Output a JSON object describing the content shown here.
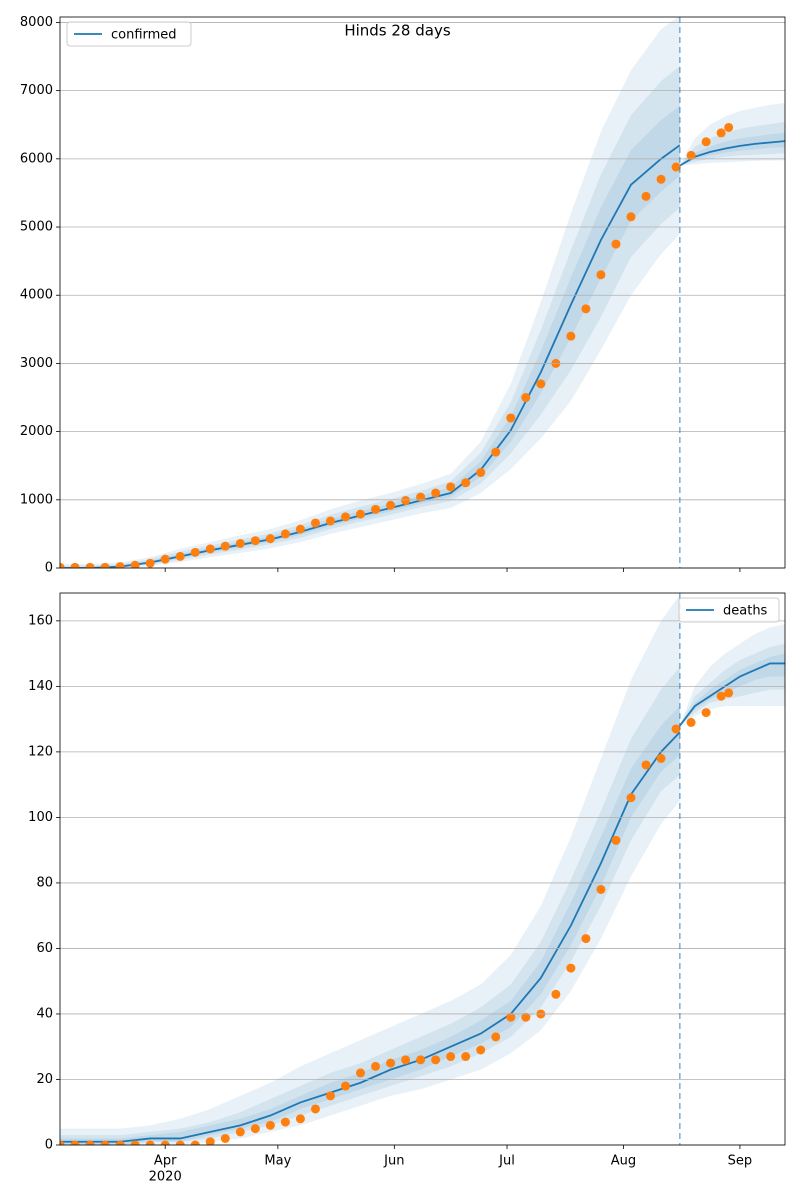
{
  "chart_data": [
    {
      "type": "line",
      "title": "Hinds 28 days",
      "legend": "upper left",
      "grid": true,
      "xlim": [
        64,
        257
      ],
      "xticks": [
        92,
        122,
        153,
        183,
        214,
        245
      ],
      "ylim": [
        0,
        8080
      ],
      "yticks": [
        0,
        1000,
        2000,
        3000,
        4000,
        5000,
        6000,
        7000,
        8000
      ],
      "vline": 229,
      "band_color": "#1f77b4",
      "series": [
        {
          "name": "confirmed",
          "color": "#1f77b4",
          "x": [
            64,
            72,
            80,
            88,
            96,
            104,
            112,
            120,
            128,
            136,
            144,
            152,
            160,
            168,
            176,
            184,
            192,
            200,
            208,
            216,
            224,
            229
          ],
          "values": [
            0,
            0,
            20,
            80,
            170,
            260,
            340,
            420,
            530,
            660,
            770,
            880,
            990,
            1100,
            1440,
            2020,
            2870,
            3860,
            4810,
            5620,
            6000,
            6200
          ],
          "bands": [
            {
              "lower": [
                0,
                0,
                0,
                30,
                90,
                160,
                220,
                290,
                380,
                500,
                600,
                700,
                800,
                880,
                1100,
                1450,
                1900,
                2450,
                3200,
                4000,
                4600,
                4900
              ],
              "upper": [
                60,
                60,
                80,
                160,
                280,
                380,
                480,
                570,
                700,
                860,
                990,
                1100,
                1230,
                1380,
                1850,
                2700,
                3900,
                5200,
                6400,
                7300,
                7900,
                8100
              ]
            },
            {
              "lower": [
                0,
                0,
                5,
                50,
                120,
                200,
                270,
                350,
                440,
                570,
                680,
                780,
                890,
                980,
                1240,
                1680,
                2250,
                2900,
                3680,
                4560,
                5040,
                5290
              ],
              "upper": [
                35,
                35,
                55,
                130,
                240,
                330,
                420,
                510,
                630,
                780,
                900,
                1010,
                1130,
                1270,
                1690,
                2430,
                3490,
                4660,
                5770,
                6640,
                7140,
                7360
              ]
            },
            {
              "lower": [
                0,
                0,
                12,
                65,
                145,
                230,
                305,
                385,
                485,
                615,
                725,
                830,
                940,
                1040,
                1340,
                1850,
                2560,
                3380,
                4250,
                5090,
                5520,
                5750
              ],
              "upper": [
                15,
                15,
                38,
                105,
                205,
                295,
                380,
                465,
                580,
                720,
                835,
                945,
                1060,
                1185,
                1565,
                2225,
                3180,
                4260,
                5290,
                6130,
                6570,
                6780
              ]
            }
          ]
        },
        {
          "color": "#1f77b4",
          "x": [
            229,
            233,
            237,
            241,
            245,
            249,
            253,
            257
          ],
          "values": [
            5900,
            6030,
            6100,
            6150,
            6190,
            6220,
            6240,
            6260
          ],
          "bands": [
            {
              "lower": [
                5900,
                5920,
                5940,
                5950,
                5960,
                5970,
                5975,
                5980
              ],
              "upper": [
                5900,
                6300,
                6500,
                6620,
                6700,
                6750,
                6790,
                6820
              ]
            },
            {
              "lower": [
                5900,
                5960,
                6000,
                6030,
                6050,
                6060,
                6070,
                6080
              ],
              "upper": [
                5900,
                6180,
                6300,
                6380,
                6440,
                6480,
                6510,
                6540
              ]
            },
            {
              "lower": [
                5900,
                6000,
                6050,
                6090,
                6120,
                6140,
                6160,
                6170
              ],
              "upper": [
                5900,
                6090,
                6180,
                6250,
                6300,
                6330,
                6360,
                6380
              ]
            }
          ]
        },
        {
          "style": "scatter",
          "color": "#ff7f0e",
          "x": [
            64,
            68,
            72,
            76,
            80,
            84,
            88,
            92,
            96,
            100,
            104,
            108,
            112,
            116,
            120,
            124,
            128,
            132,
            136,
            140,
            144,
            148,
            152,
            156,
            160,
            164,
            168,
            172,
            176,
            180,
            184,
            188,
            192,
            196,
            200,
            204,
            208,
            212,
            216,
            220,
            224,
            228,
            232,
            236,
            240,
            242
          ],
          "values": [
            10,
            10,
            10,
            10,
            20,
            40,
            70,
            130,
            170,
            230,
            280,
            320,
            360,
            400,
            430,
            500,
            570,
            660,
            690,
            750,
            790,
            860,
            920,
            990,
            1040,
            1100,
            1190,
            1250,
            1400,
            1700,
            2200,
            2500,
            2700,
            3000,
            3400,
            3800,
            4300,
            4750,
            5150,
            5450,
            5700,
            5880,
            6050,
            6250,
            6380,
            6460
          ]
        }
      ]
    },
    {
      "type": "line",
      "legend": "upper right",
      "grid": true,
      "xlim": [
        64,
        257
      ],
      "xticks": [
        {
          "value": 92,
          "label": "Apr"
        },
        {
          "value": 122,
          "label": "May"
        },
        {
          "value": 153,
          "label": "Jun"
        },
        {
          "value": 183,
          "label": "Jul"
        },
        {
          "value": 214,
          "label": "Aug"
        },
        {
          "value": 245,
          "label": "Sep"
        }
      ],
      "year": "2020",
      "ylim": [
        0,
        168.5
      ],
      "yticks": [
        0,
        20,
        40,
        60,
        80,
        100,
        120,
        140,
        160
      ],
      "vline": 229,
      "band_color": "#1f77b4",
      "series": [
        {
          "name": "deaths",
          "color": "#1f77b4",
          "x": [
            64,
            72,
            80,
            88,
            96,
            104,
            112,
            120,
            128,
            136,
            144,
            152,
            160,
            168,
            176,
            184,
            192,
            200,
            208,
            216,
            224,
            229
          ],
          "values": [
            1,
            1,
            1,
            2,
            2,
            4,
            6,
            9,
            13,
            16,
            19,
            23,
            26,
            30,
            34,
            40,
            51,
            67,
            86,
            107,
            120,
            126
          ],
          "bands": [
            {
              "lower": [
                0,
                0,
                0,
                0,
                0,
                1,
                2,
                4,
                6,
                9,
                12,
                15,
                17,
                20,
                23,
                28,
                35,
                47,
                63,
                82,
                98,
                105
              ],
              "upper": [
                5,
                5,
                5,
                6,
                8,
                11,
                15,
                19,
                24,
                28,
                32,
                36,
                40,
                44,
                49,
                58,
                73,
                94,
                118,
                142,
                160,
                168
              ]
            },
            {
              "lower": [
                0,
                0,
                0,
                1,
                1,
                2,
                4,
                6,
                9,
                12,
                15,
                18,
                21,
                24,
                28,
                33,
                42,
                56,
                73,
                93,
                108,
                113
              ],
              "upper": [
                3,
                3,
                3,
                4,
                5,
                7,
                10,
                14,
                18,
                22,
                25,
                29,
                33,
                37,
                42,
                49,
                62,
                81,
                102,
                124,
                139,
                146
              ]
            },
            {
              "lower": [
                0,
                0,
                0,
                1,
                1,
                3,
                5,
                7,
                11,
                14,
                17,
                20,
                23,
                27,
                31,
                36,
                46,
                61,
                79,
                100,
                114,
                119
              ],
              "upper": [
                2,
                2,
                2,
                3,
                4,
                6,
                8,
                11,
                15,
                19,
                22,
                26,
                29,
                33,
                38,
                44,
                56,
                74,
                94,
                115,
                128,
                134
              ]
            }
          ]
        },
        {
          "color": "#1f77b4",
          "x": [
            229,
            233,
            237,
            241,
            245,
            249,
            253,
            257
          ],
          "values": [
            128,
            134,
            137,
            140,
            143,
            145,
            147,
            147
          ],
          "bands": [
            {
              "lower": [
                128,
                131,
                133,
                134,
                134,
                134,
                134,
                134
              ],
              "upper": [
                128,
                140,
                146,
                150,
                153,
                156,
                158,
                159
              ]
            },
            {
              "lower": [
                128,
                132,
                135,
                136,
                137,
                138,
                139,
                139
              ],
              "upper": [
                128,
                137,
                141,
                145,
                148,
                150,
                152,
                153
              ]
            },
            {
              "lower": [
                128,
                133,
                136,
                138,
                140,
                142,
                143,
                143
              ],
              "upper": [
                128,
                135,
                139,
                142,
                145,
                147,
                149,
                150
              ]
            }
          ]
        },
        {
          "style": "scatter",
          "color": "#ff7f0e",
          "x": [
            64,
            68,
            72,
            76,
            80,
            84,
            88,
            92,
            96,
            100,
            104,
            108,
            112,
            116,
            120,
            124,
            128,
            132,
            136,
            140,
            144,
            148,
            152,
            156,
            160,
            164,
            168,
            172,
            176,
            180,
            184,
            188,
            192,
            196,
            200,
            204,
            208,
            212,
            216,
            220,
            224,
            228,
            232,
            236,
            240,
            242
          ],
          "values": [
            0,
            0,
            0,
            0,
            0,
            0,
            0,
            0,
            0,
            0,
            1,
            2,
            4,
            5,
            6,
            7,
            8,
            11,
            15,
            18,
            22,
            24,
            25,
            26,
            26,
            26,
            27,
            27,
            29,
            33,
            39,
            39,
            40,
            46,
            54,
            63,
            78,
            93,
            106,
            116,
            118,
            127,
            129,
            132,
            137,
            138
          ]
        }
      ]
    }
  ]
}
